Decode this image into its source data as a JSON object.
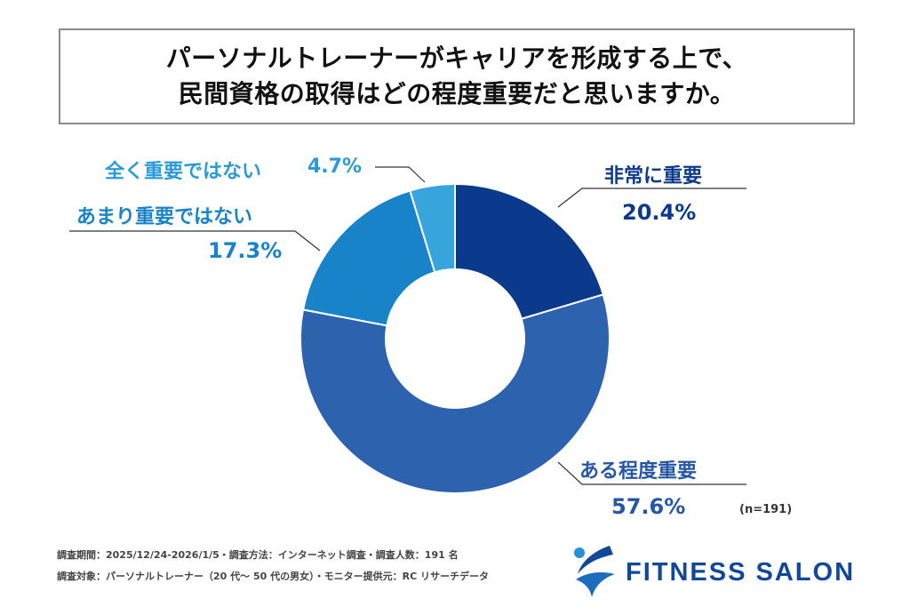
{
  "title": {
    "line1": "パーソナルトレーナーがキャリアを形成する上で、",
    "line2": "民間資格の取得はどの程度重要だと思いますか。"
  },
  "chart_data": {
    "type": "pie",
    "variant": "donut",
    "categories": [
      "非常に重要",
      "ある程度重要",
      "あまり重要ではない",
      "全く重要ではない"
    ],
    "values": [
      20.4,
      57.6,
      17.3,
      4.7
    ],
    "value_labels": [
      "20.4%",
      "57.6%",
      "17.3%",
      "4.7%"
    ],
    "colors": [
      "#0b3a8c",
      "#2d62ae",
      "#1883c9",
      "#38a4dc"
    ],
    "label_colors": [
      "#0b3a8c",
      "#2657a6",
      "#1883c9",
      "#2a9ad8"
    ],
    "start": "top",
    "direction": "clockwise",
    "sample_note": "(n=191)"
  },
  "footer": {
    "line1": "調査期間：2025/12/24-2026/1/5・調査方法：インターネット調査・調査人数：191 名",
    "line2": "調査対象：パーソナルトレーナー（20 代～ 50 代の男女）・モニター提供元：RC リサーチデータ"
  },
  "logo": {
    "text": "FITNESS SALON",
    "color": "#12489a"
  }
}
